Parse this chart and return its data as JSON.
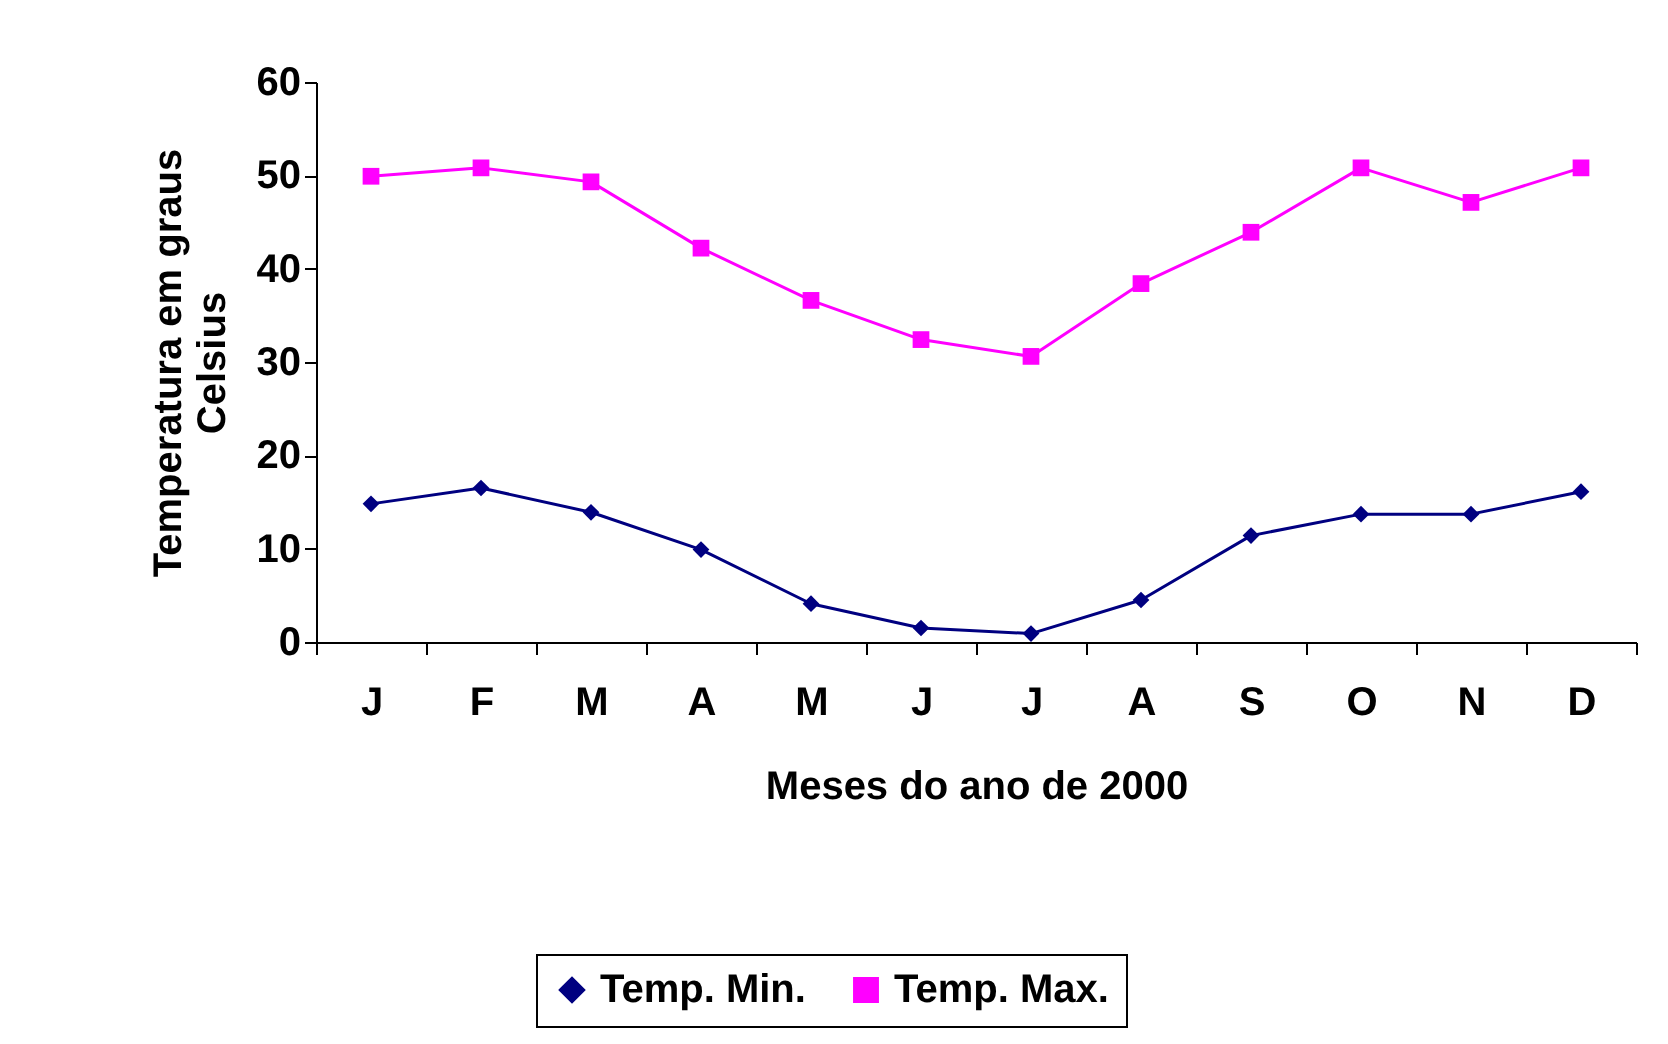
{
  "chart_data": {
    "type": "line",
    "xlabel": "Meses do ano de 2000",
    "ylabel": "Temperatura em graus Celsius",
    "categories": [
      "J",
      "F",
      "M",
      "A",
      "M",
      "J",
      "J",
      "A",
      "S",
      "O",
      "N",
      "D"
    ],
    "ylim": [
      0,
      60
    ],
    "yticks": [
      0,
      10,
      20,
      30,
      40,
      50,
      60
    ],
    "grid": false,
    "legend": "bottom",
    "series": [
      {
        "name": "Temp. Min.",
        "color": "#000080",
        "marker": "diamond",
        "values": [
          14.8,
          16.5,
          13.9,
          9.9,
          4.1,
          1.5,
          0.9,
          4.5,
          11.4,
          13.7,
          13.7,
          16.1
        ]
      },
      {
        "name": "Temp. Max.",
        "color": "#ff00ff",
        "marker": "square",
        "values": [
          49.9,
          50.8,
          49.3,
          42.2,
          36.6,
          32.4,
          30.6,
          38.4,
          43.9,
          50.8,
          47.1,
          50.8
        ]
      }
    ]
  }
}
